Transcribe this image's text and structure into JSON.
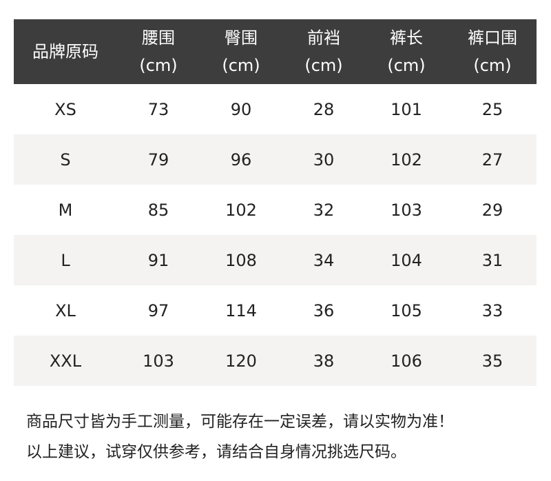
{
  "table": {
    "headers": [
      {
        "name": "品牌原码",
        "unit": ""
      },
      {
        "name": "腰围",
        "unit": "(cm)"
      },
      {
        "name": "臀围",
        "unit": "(cm)"
      },
      {
        "name": "前裆",
        "unit": "(cm)"
      },
      {
        "name": "裤长",
        "unit": "(cm)"
      },
      {
        "name": "裤口围",
        "unit": "(cm)"
      }
    ],
    "rows": [
      [
        "XS",
        "73",
        "90",
        "28",
        "101",
        "25"
      ],
      [
        "S",
        "79",
        "96",
        "30",
        "102",
        "27"
      ],
      [
        "M",
        "85",
        "102",
        "32",
        "103",
        "29"
      ],
      [
        "L",
        "91",
        "108",
        "34",
        "104",
        "31"
      ],
      [
        "XL",
        "97",
        "114",
        "36",
        "105",
        "33"
      ],
      [
        "XXL",
        "103",
        "120",
        "38",
        "106",
        "35"
      ]
    ]
  },
  "notes": [
    "商品尺寸皆为手工测量，可能存在一定误差，请以实物为准！",
    "以上建议，试穿仅供参考，请结合自身情况挑选尺码。"
  ],
  "colors": {
    "header_bg": "#3d3d3d",
    "alt_row_bg": "#f4f3f1"
  }
}
